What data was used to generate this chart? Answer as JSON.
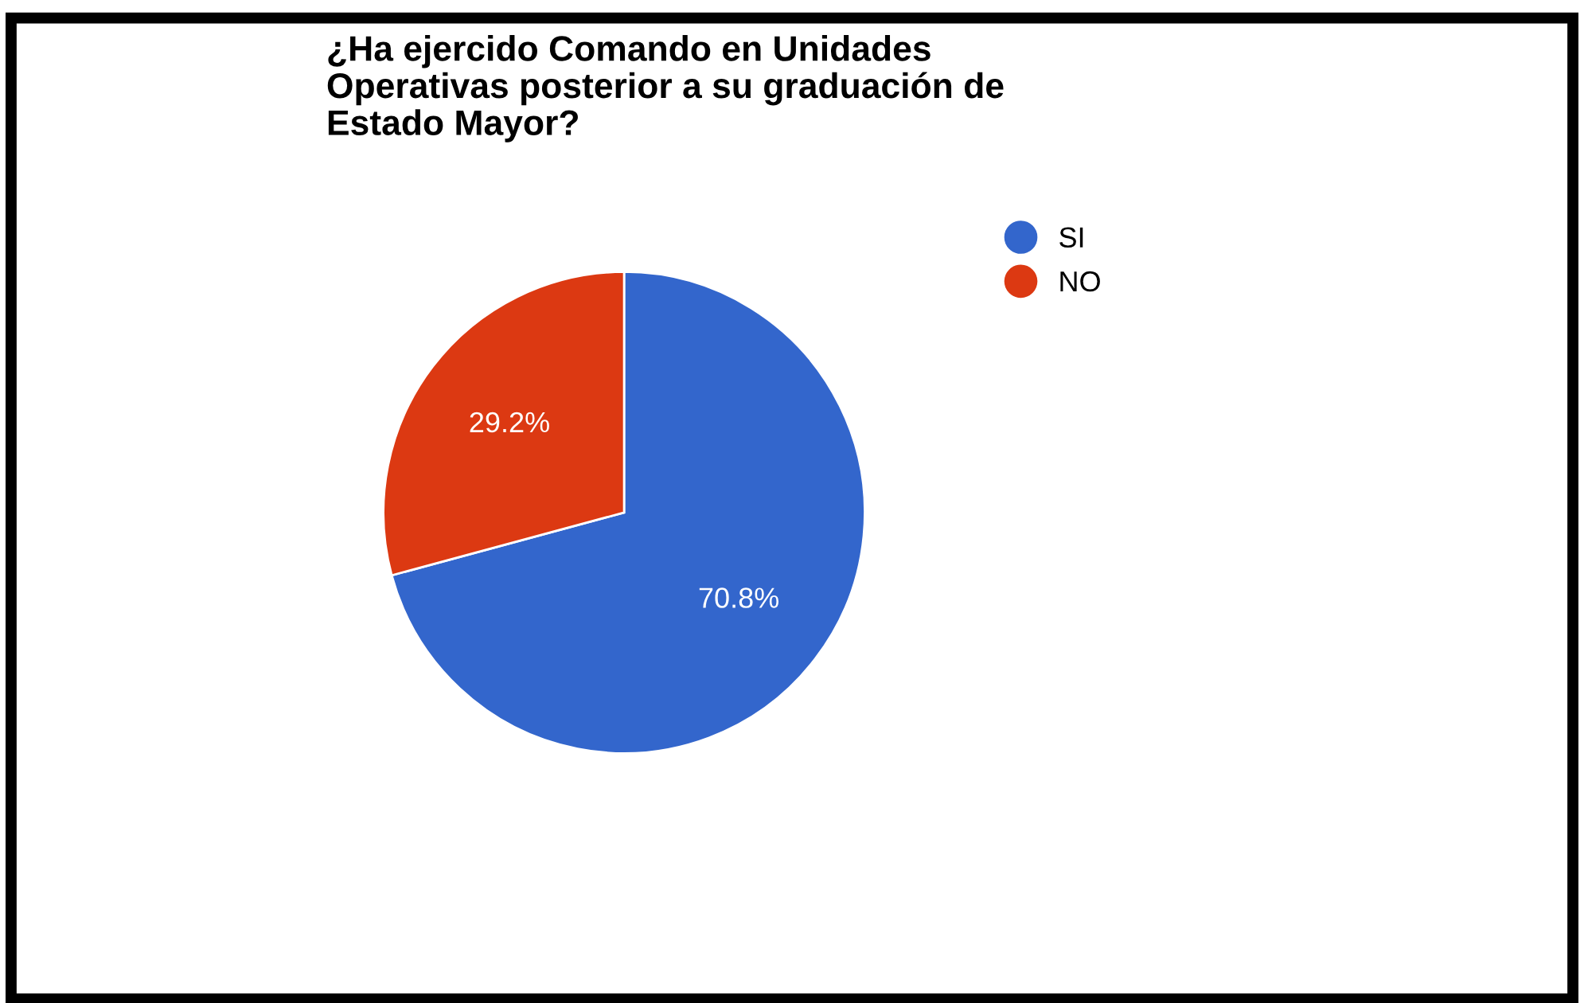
{
  "chart_data": {
    "type": "pie",
    "title": "¿Ha ejercido Comando en Unidades\nOperativas posterior a su graduación de\nEstado Mayor?",
    "categories": [
      "SI",
      "NO"
    ],
    "values": [
      70.8,
      29.2
    ],
    "value_labels": [
      "70.8%",
      "29.2%"
    ],
    "colors": [
      "#3366cc",
      "#dc3912"
    ],
    "legend": "top right"
  }
}
